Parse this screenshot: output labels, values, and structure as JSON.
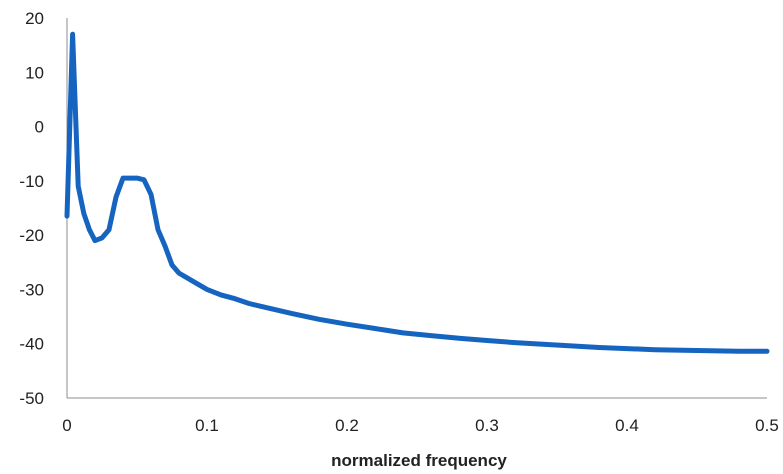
{
  "colors": {
    "series": "#1565c0",
    "axis": "#8c8c8c",
    "text": "#222222"
  },
  "chart_data": {
    "type": "line",
    "title": "",
    "xlabel": "normalized frequency",
    "ylabel": "",
    "xlim": [
      0,
      0.5
    ],
    "ylim": [
      -50,
      20
    ],
    "grid": false,
    "legend": "none",
    "x_ticks": [
      0,
      0.1,
      0.2,
      0.3,
      0.4,
      0.5
    ],
    "x_tick_labels": [
      "0",
      "0.1",
      "0.2",
      "0.3",
      "0.4",
      "0.5"
    ],
    "y_ticks": [
      20,
      10,
      0,
      -10,
      -20,
      -30,
      -40,
      -50
    ],
    "y_tick_labels": [
      "20",
      "10",
      "0",
      "-10",
      "-20",
      "-30",
      "-40",
      "-50"
    ],
    "series": [
      {
        "x": [
          0,
          0.004,
          0.008,
          0.012,
          0.016,
          0.02,
          0.025,
          0.03,
          0.035,
          0.04,
          0.045,
          0.05,
          0.055,
          0.06,
          0.065,
          0.07,
          0.075,
          0.08,
          0.09,
          0.1,
          0.11,
          0.12,
          0.13,
          0.14,
          0.15,
          0.16,
          0.18,
          0.2,
          0.22,
          0.24,
          0.26,
          0.28,
          0.3,
          0.32,
          0.34,
          0.36,
          0.38,
          0.4,
          0.42,
          0.44,
          0.46,
          0.48,
          0.5
        ],
        "y": [
          -16.5,
          17,
          -11,
          -16,
          -19,
          -21,
          -20.5,
          -19,
          -13,
          -9.5,
          -9.5,
          -9.5,
          -9.8,
          -12.5,
          -19,
          -22,
          -25.5,
          -27,
          -28.5,
          -30,
          -31,
          -31.7,
          -32.6,
          -33.2,
          -33.8,
          -34.4,
          -35.5,
          -36.4,
          -37.2,
          -38,
          -38.5,
          -39,
          -39.4,
          -39.8,
          -40.1,
          -40.4,
          -40.7,
          -40.9,
          -41.1,
          -41.2,
          -41.3,
          -41.4,
          -41.4
        ]
      }
    ]
  }
}
